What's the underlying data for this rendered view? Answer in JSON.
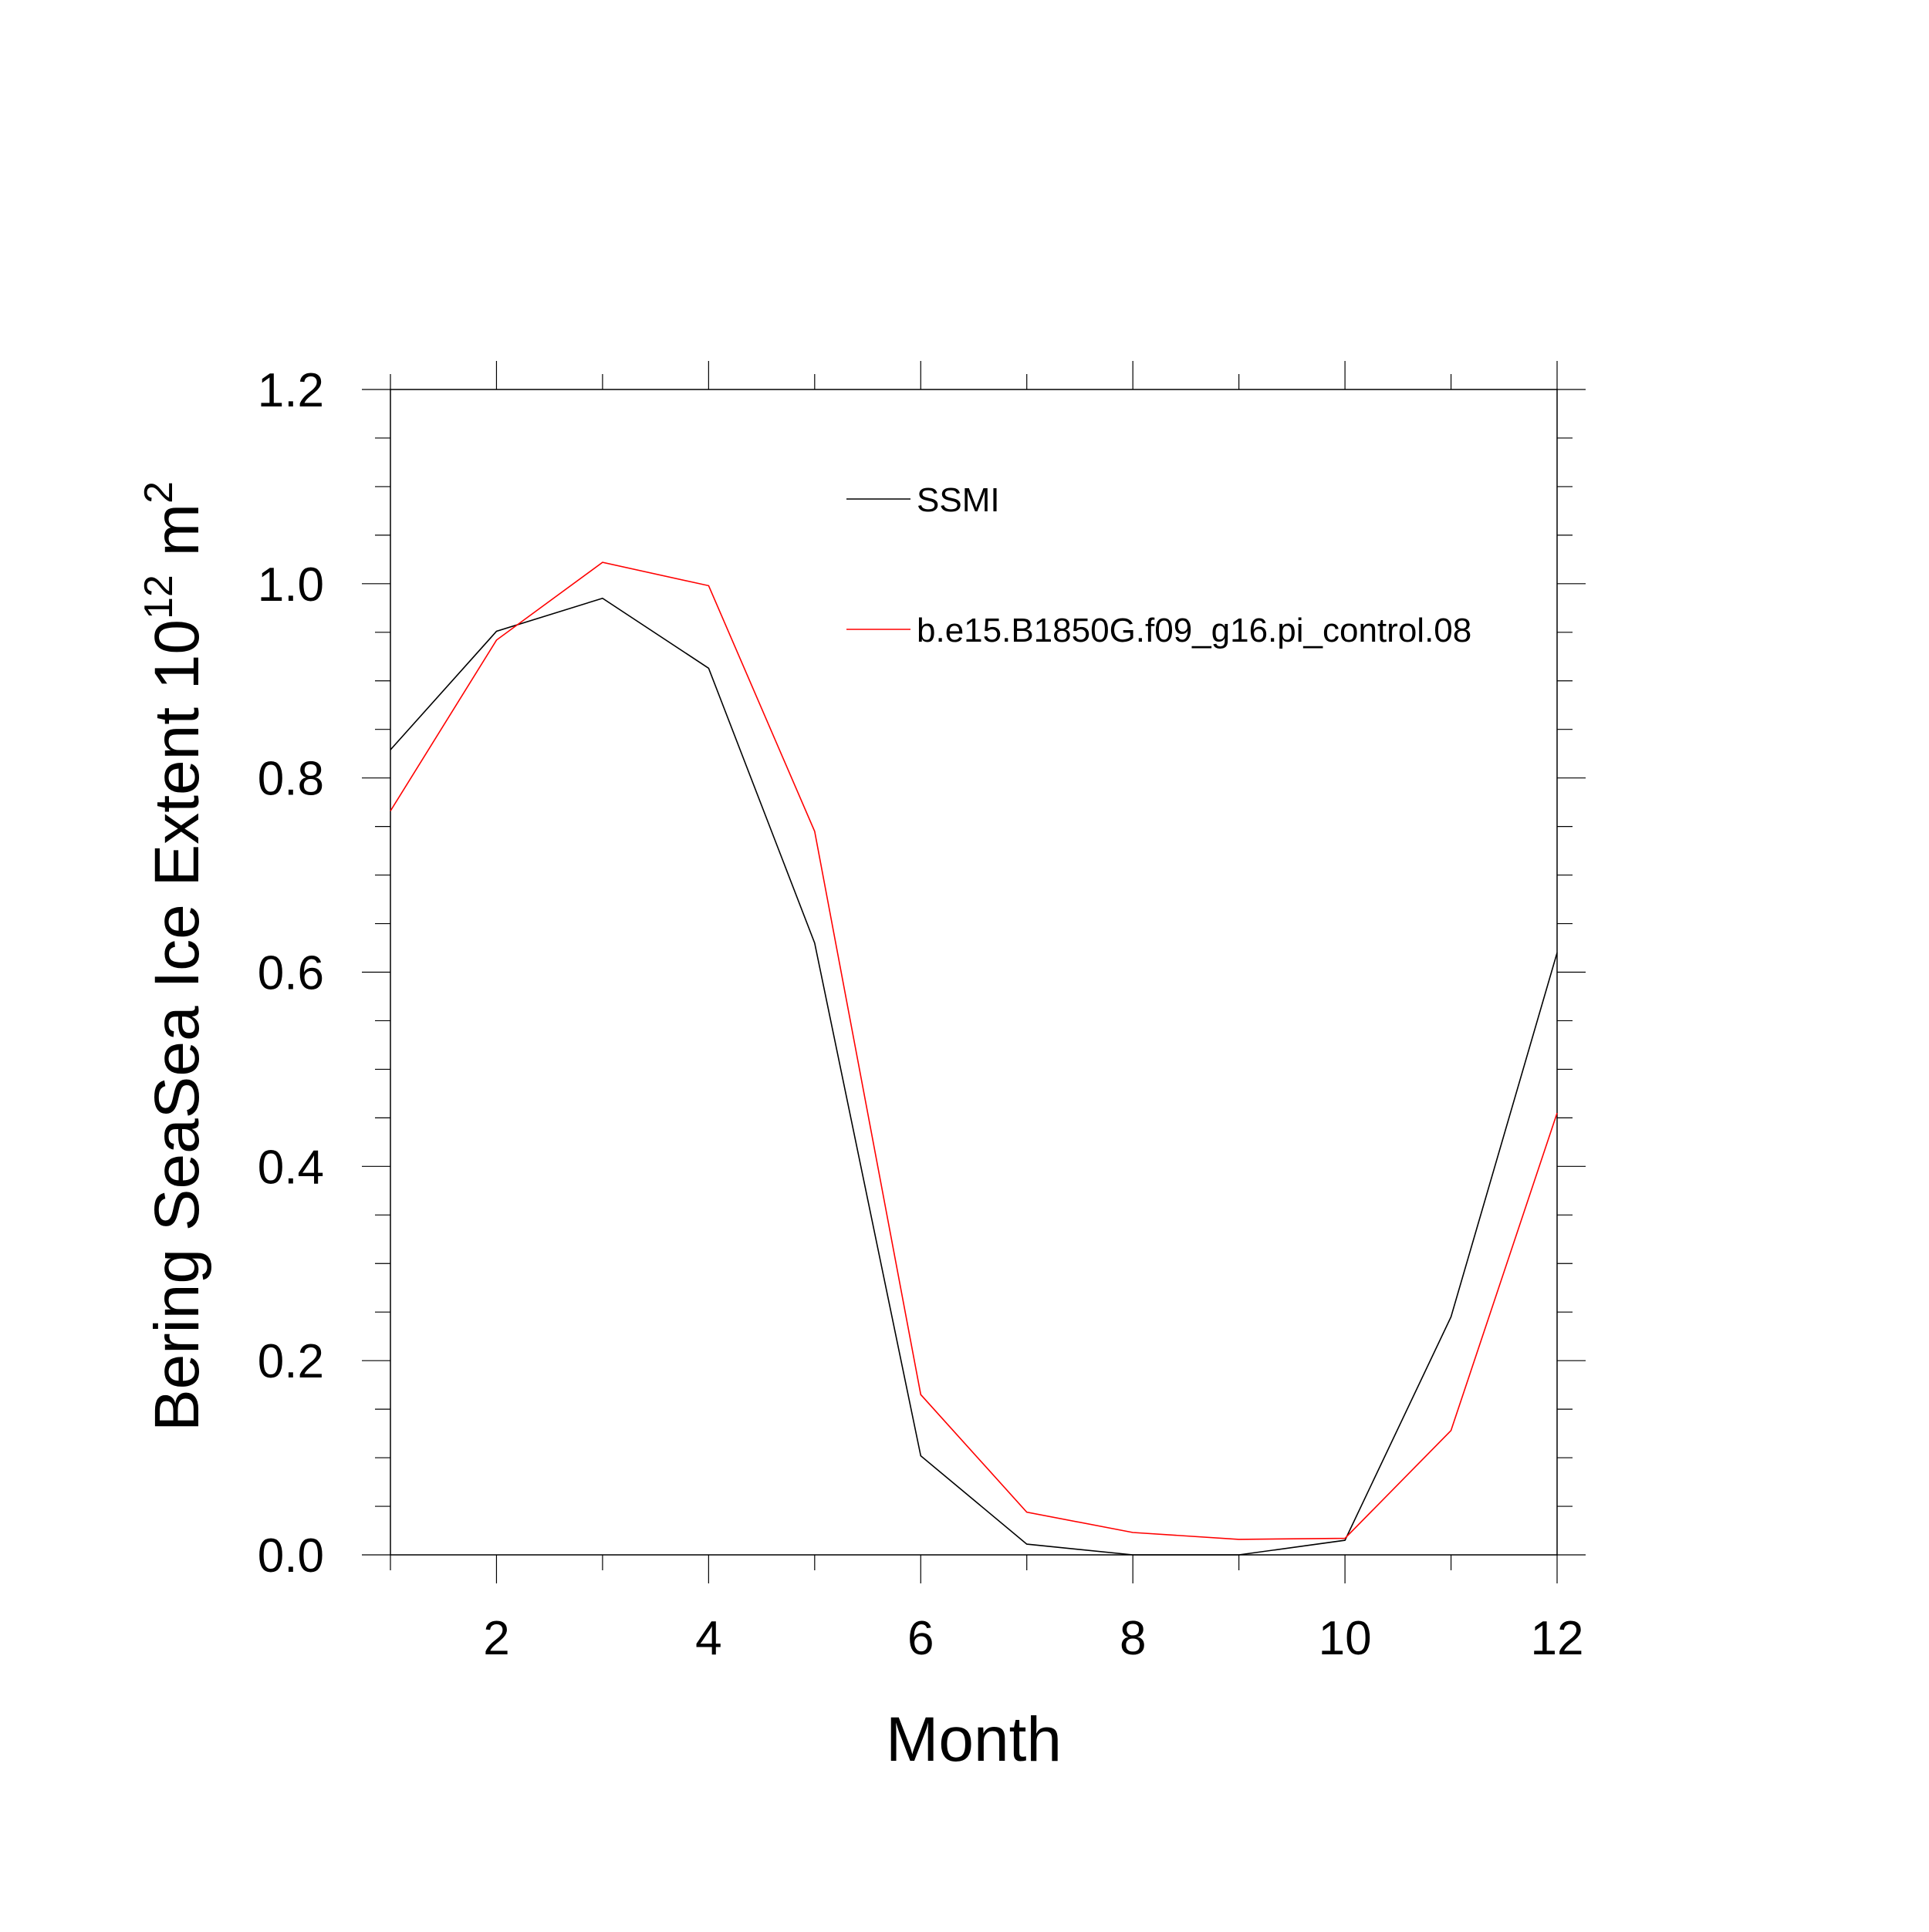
{
  "chart_data": {
    "type": "line",
    "title": "",
    "xlabel": "Month",
    "ylabel": {
      "main": "Bering SeaSea Ice Extent 10",
      "exponent": "12",
      "unit": "m",
      "unit_exponent": "2"
    },
    "xlim": [
      1,
      12
    ],
    "ylim": [
      0.0,
      1.2
    ],
    "x_ticks": [
      2,
      4,
      6,
      8,
      10,
      12
    ],
    "x_tick_labels": [
      "2",
      "4",
      "6",
      "8",
      "10",
      "12"
    ],
    "y_ticks": [
      0.0,
      0.2,
      0.4,
      0.6,
      0.8,
      1.0,
      1.2
    ],
    "y_tick_labels": [
      "0.0",
      "0.2",
      "0.4",
      "0.6",
      "0.8",
      "1.0",
      "1.2"
    ],
    "grid": false,
    "legend_position": "top-right",
    "x": [
      1,
      2,
      3,
      4,
      5,
      6,
      7,
      8,
      9,
      10,
      11,
      12
    ],
    "series": [
      {
        "name": "SSMI",
        "color": "#000000",
        "values": [
          0.829,
          0.951,
          0.985,
          0.913,
          0.63,
          0.102,
          0.011,
          0.0,
          0.0,
          0.015,
          0.245,
          0.62
        ]
      },
      {
        "name": "b.e15.B1850G.f09_g16.pi_control.08",
        "color": "#ff0000",
        "values": [
          0.766,
          0.942,
          1.022,
          0.998,
          0.745,
          0.165,
          0.044,
          0.023,
          0.016,
          0.017,
          0.128,
          0.455
        ]
      }
    ]
  }
}
